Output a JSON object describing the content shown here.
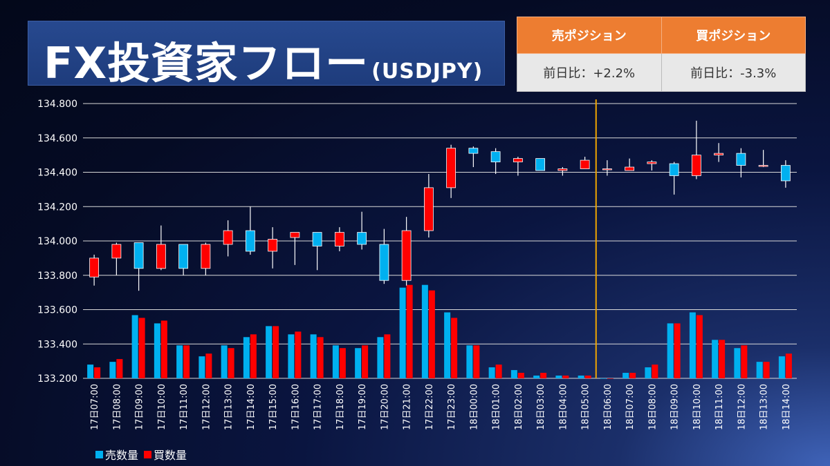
{
  "title": {
    "main": "FX投資家フロー",
    "sub": "(USDJPY)"
  },
  "position_table": {
    "sell_header": "売ポジション",
    "buy_header": "買ポジション",
    "sell_value": "前日比：+2.2%",
    "buy_value": "前日比：-3.3%"
  },
  "colors": {
    "up": "#ff0000",
    "down": "#00b0f0",
    "sell_bar": "#00b0f0",
    "buy_bar": "#ff0000",
    "divider": "#f0a500"
  },
  "chart_data": {
    "type": "candlestick+bar",
    "y_ticks": [
      "134.800",
      "134.600",
      "134.400",
      "134.200",
      "134.000",
      "133.800",
      "133.600",
      "133.400",
      "133.200"
    ],
    "ylim": [
      133.2,
      134.8
    ],
    "grid": true,
    "divider_after_category": "18日05:00",
    "categories": [
      "17日07:00",
      "17日08:00",
      "17日09:00",
      "17日10:00",
      "17日11:00",
      "17日12:00",
      "17日13:00",
      "17日14:00",
      "17日15:00",
      "17日16:00",
      "17日17:00",
      "17日18:00",
      "17日19:00",
      "17日20:00",
      "17日21:00",
      "17日22:00",
      "17日23:00",
      "18日00:00",
      "18日01:00",
      "18日02:00",
      "18日03:00",
      "18日04:00",
      "18日05:00",
      "18日06:00",
      "18日07:00",
      "18日08:00",
      "18日09:00",
      "18日10:00",
      "18日11:00",
      "18日12:00",
      "18日13:00",
      "18日14:00"
    ],
    "ohlc": [
      [
        133.79,
        133.92,
        133.74,
        133.9
      ],
      [
        133.9,
        133.99,
        133.8,
        133.98
      ],
      [
        133.99,
        133.99,
        133.71,
        133.84
      ],
      [
        133.84,
        134.09,
        133.83,
        133.98
      ],
      [
        133.98,
        133.98,
        133.8,
        133.84
      ],
      [
        133.84,
        133.99,
        133.8,
        133.98
      ],
      [
        133.98,
        134.12,
        133.91,
        134.06
      ],
      [
        134.06,
        134.2,
        133.92,
        133.94
      ],
      [
        133.94,
        134.08,
        133.84,
        134.01
      ],
      [
        134.02,
        134.05,
        133.86,
        134.05
      ],
      [
        134.05,
        134.05,
        133.83,
        133.97
      ],
      [
        133.97,
        134.08,
        133.94,
        134.05
      ],
      [
        134.05,
        134.17,
        133.95,
        133.98
      ],
      [
        133.98,
        134.07,
        133.75,
        133.77
      ],
      [
        133.77,
        134.14,
        133.74,
        134.06
      ],
      [
        134.06,
        134.39,
        134.02,
        134.31
      ],
      [
        134.31,
        134.56,
        134.25,
        134.54
      ],
      [
        134.54,
        134.55,
        134.43,
        134.51
      ],
      [
        134.52,
        134.54,
        134.39,
        134.46
      ],
      [
        134.46,
        134.49,
        134.38,
        134.48
      ],
      [
        134.48,
        134.48,
        134.41,
        134.41
      ],
      [
        134.41,
        134.43,
        134.38,
        134.42
      ],
      [
        134.42,
        134.49,
        134.42,
        134.47
      ],
      [
        134.42,
        134.47,
        134.38,
        134.42
      ],
      [
        134.41,
        134.48,
        134.41,
        134.43
      ],
      [
        134.45,
        134.47,
        134.41,
        134.46
      ],
      [
        134.45,
        134.46,
        134.27,
        134.38
      ],
      [
        134.38,
        134.7,
        134.36,
        134.5
      ],
      [
        134.5,
        134.57,
        134.46,
        134.51
      ],
      [
        134.51,
        134.54,
        134.37,
        134.44
      ],
      [
        134.44,
        134.53,
        134.43,
        134.44
      ],
      [
        134.44,
        134.47,
        134.31,
        134.35
      ]
    ],
    "series": [
      {
        "name": "売数量",
        "values": [
          5,
          6,
          23,
          20,
          12,
          8,
          12,
          15,
          19,
          16,
          16,
          12,
          11,
          15,
          33,
          34,
          24,
          12,
          4,
          3,
          1,
          1,
          1,
          0,
          2,
          4,
          20,
          24,
          14,
          11,
          6,
          8
        ]
      },
      {
        "name": "買数量",
        "values": [
          4,
          7,
          22,
          21,
          12,
          9,
          11,
          16,
          19,
          17,
          15,
          11,
          12,
          16,
          34,
          32,
          22,
          12,
          5,
          2,
          2,
          1,
          1,
          0,
          2,
          5,
          20,
          23,
          14,
          12,
          6,
          9
        ]
      }
    ],
    "volume_scale_max": 100
  }
}
